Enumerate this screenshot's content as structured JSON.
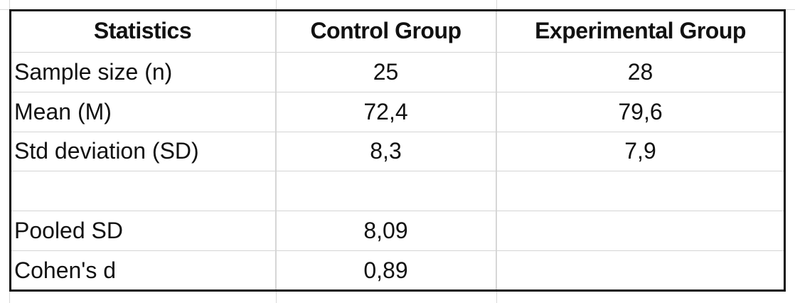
{
  "table": {
    "header": [
      "Statistics",
      "Control Group",
      "Experimental Group"
    ],
    "rows": [
      [
        "Sample size (n)",
        "25",
        "28"
      ],
      [
        "Mean (M)",
        "72,4",
        "79,6"
      ],
      [
        "Std deviation (SD)",
        "8,3",
        "7,9"
      ],
      [
        "Pooled SD",
        "8,09"
      ],
      [
        "Cohen's d",
        "0,89"
      ]
    ]
  }
}
